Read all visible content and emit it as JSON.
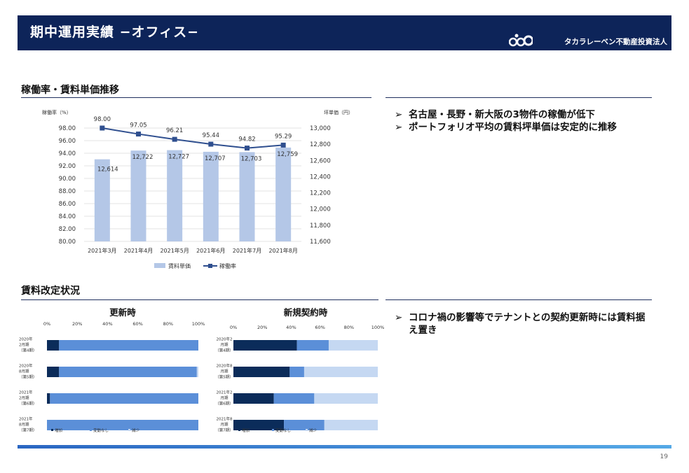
{
  "header": {
    "title": "期中運用実績 −オフィス−",
    "company": "タカラレーベン不動産投資法人"
  },
  "section1": {
    "title": "稼働率・賃料単価推移",
    "bullets": [
      "名古屋・長野・新大阪の3物件の稼働が低下",
      "ポートフォリオ平均の賃料坪単価は安定的に推移"
    ]
  },
  "section2": {
    "title": "賃料改定状況",
    "bullets": [
      "コロナ禍の影響等でテナントとの契約更新時には賃料据え置き"
    ]
  },
  "colors": {
    "navy": "#0d2459",
    "bar_light": "#b4c7e7",
    "line": "#2f4f8f",
    "dark": "#0b2c5a",
    "mid": "#5b8fd8",
    "light": "#c5d8f2"
  },
  "chart_data": [
    {
      "type": "bar+line",
      "title": "稼働率・賃料単価推移",
      "categories": [
        "2021年3月",
        "2021年4月",
        "2021年5月",
        "2021年6月",
        "2021年7月",
        "2021年8月"
      ],
      "series": [
        {
          "name": "賃料単価",
          "type": "bar",
          "axis": "right",
          "values": [
            12614,
            12722,
            12727,
            12707,
            12703,
            12759
          ],
          "labels": [
            "12,614",
            "12,722",
            "12,727",
            "12,707",
            "12,703",
            "12,759"
          ]
        },
        {
          "name": "稼働率",
          "type": "line",
          "axis": "left",
          "values": [
            98.0,
            97.05,
            96.21,
            95.44,
            94.82,
            95.29
          ],
          "labels": [
            "98.00",
            "97.05",
            "96.21",
            "95.44",
            "94.82",
            "95.29"
          ]
        }
      ],
      "ylabel_left": "稼働率（%）",
      "ylabel_right": "坪単価（円）",
      "ylim_left": [
        80,
        98
      ],
      "ylim_right": [
        11600,
        13000
      ],
      "yticks_left": [
        "80.00",
        "82.00",
        "84.00",
        "86.00",
        "88.00",
        "90.00",
        "92.00",
        "94.00",
        "96.00",
        "98.00"
      ],
      "yticks_right": [
        "11,600",
        "11,800",
        "12,000",
        "12,200",
        "12,400",
        "12,600",
        "12,800",
        "13,000"
      ],
      "legend": [
        "賃料単価",
        "稼働率"
      ]
    },
    {
      "type": "stacked-bar-horizontal",
      "title": "更新時",
      "categories": [
        [
          "2020年",
          "2月期",
          "（第4期）"
        ],
        [
          "2020年",
          "8月期",
          "（第5期）"
        ],
        [
          "2021年",
          "2月期",
          "（第6期）"
        ],
        [
          "2021年",
          "8月期",
          "（第7期）"
        ]
      ],
      "xticks": [
        "0%",
        "20%",
        "40%",
        "60%",
        "80%",
        "100%"
      ],
      "series": [
        {
          "name": "増加",
          "values": [
            8,
            8,
            2,
            0
          ]
        },
        {
          "name": "変動なし",
          "values": [
            92,
            91,
            98,
            100
          ]
        },
        {
          "name": "減少",
          "values": [
            0,
            1,
            0,
            0
          ]
        }
      ],
      "legend": [
        "増加",
        "変動なし",
        "減少"
      ]
    },
    {
      "type": "stacked-bar-horizontal",
      "title": "新規契約時",
      "categories": [
        [
          "2020年2",
          "月期",
          "（第4期）"
        ],
        [
          "2020年8",
          "月期",
          "（第5期）"
        ],
        [
          "2021年2",
          "月期",
          "（第6期）"
        ],
        [
          "2021年8",
          "月期",
          "（第7期）"
        ]
      ],
      "xticks": [
        "0%",
        "20%",
        "40%",
        "60%",
        "80%",
        "100%"
      ],
      "series": [
        {
          "name": "増加",
          "values": [
            44,
            39,
            28,
            35
          ]
        },
        {
          "name": "変動なし",
          "values": [
            22,
            10,
            28,
            28
          ]
        },
        {
          "name": "減少",
          "values": [
            34,
            51,
            44,
            37
          ]
        }
      ],
      "legend": [
        "増加",
        "変動なし",
        "減少"
      ]
    }
  ],
  "page_number": "19"
}
